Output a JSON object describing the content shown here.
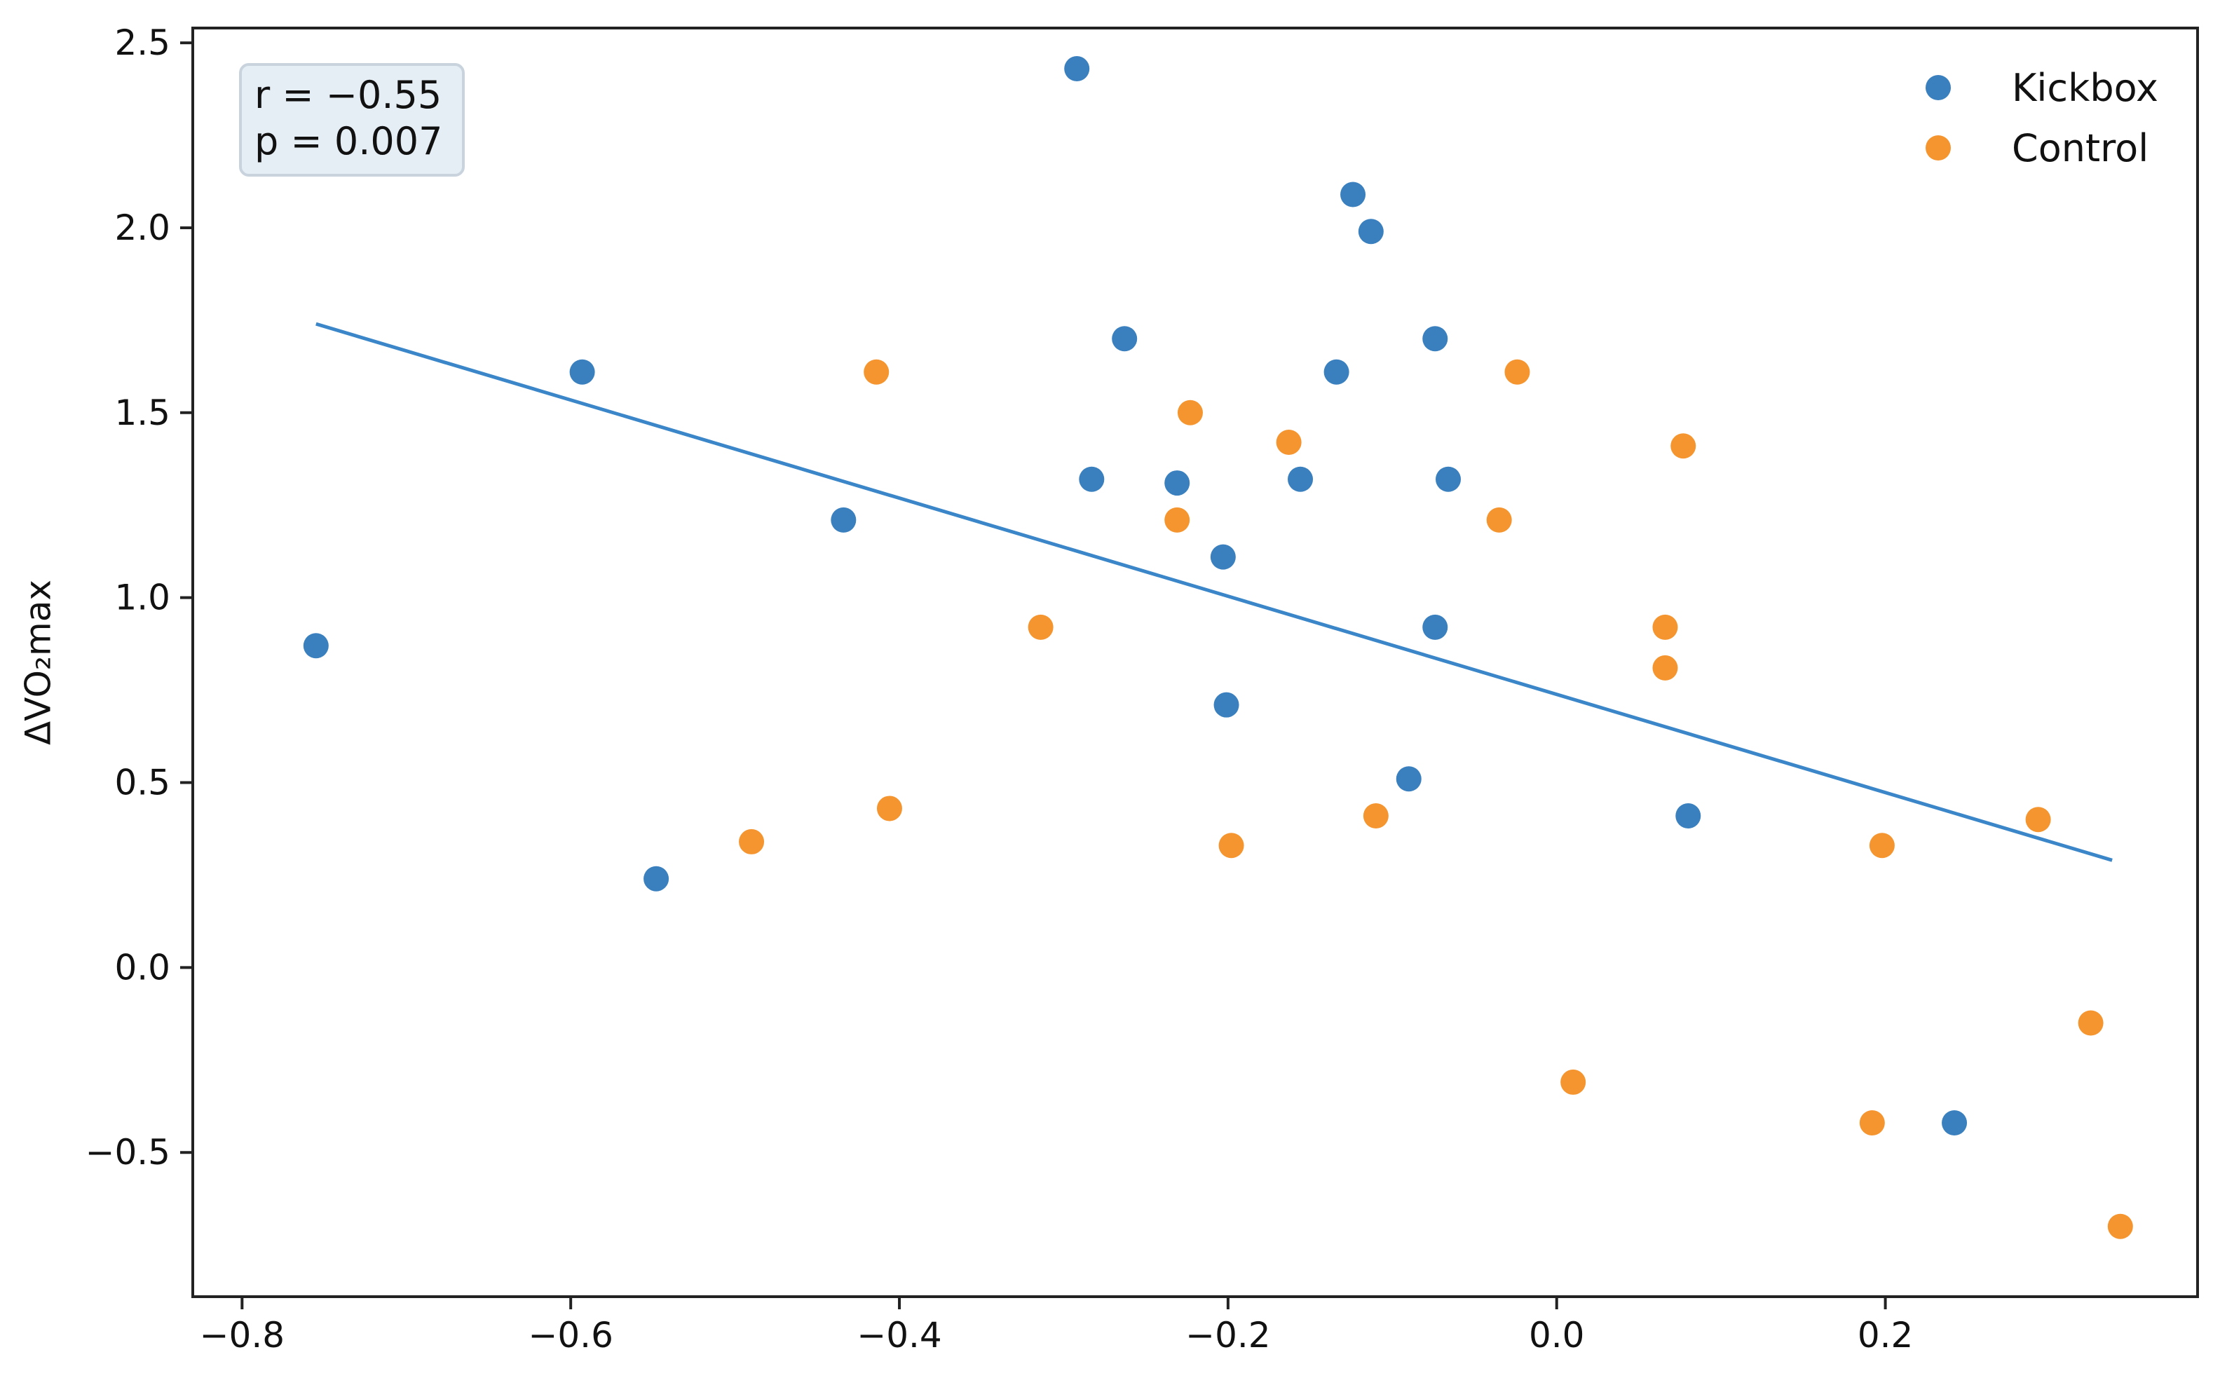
{
  "chart_data": {
    "type": "scatter",
    "title": "",
    "xlabel": "",
    "ylabel": "ΔVO₂max",
    "xlim": [
      -0.83,
      0.39
    ],
    "ylim": [
      -0.89,
      2.54
    ],
    "xticks": [
      -0.8,
      -0.6,
      -0.4,
      -0.2,
      0.0,
      0.2
    ],
    "xtick_labels": [
      "−0.8",
      "−0.6",
      "−0.4",
      "−0.2",
      "0.0",
      "0.2"
    ],
    "yticks": [
      -0.5,
      0.0,
      0.5,
      1.0,
      1.5,
      2.0,
      2.5
    ],
    "ytick_labels": [
      "−0.5",
      "0.0",
      "0.5",
      "1.0",
      "1.5",
      "2.0",
      "2.5"
    ],
    "grid": false,
    "legend_position": "top-right",
    "annotation": {
      "lines": [
        "r = −0.55",
        "p = 0.007"
      ],
      "position": "top-left"
    },
    "regression_line": {
      "color": "#3a86c8",
      "x": [
        -0.755,
        0.338
      ],
      "y": [
        1.74,
        0.29
      ]
    },
    "series": [
      {
        "name": "Kickbox",
        "color": "#3a80bf",
        "points": [
          {
            "x": -0.755,
            "y": 0.87
          },
          {
            "x": -0.593,
            "y": 1.61
          },
          {
            "x": -0.548,
            "y": 0.24
          },
          {
            "x": -0.434,
            "y": 1.21
          },
          {
            "x": -0.292,
            "y": 2.43
          },
          {
            "x": -0.283,
            "y": 1.32
          },
          {
            "x": -0.263,
            "y": 1.7
          },
          {
            "x": -0.231,
            "y": 1.31
          },
          {
            "x": -0.203,
            "y": 1.11
          },
          {
            "x": -0.201,
            "y": 0.71
          },
          {
            "x": -0.156,
            "y": 1.32
          },
          {
            "x": -0.134,
            "y": 1.61
          },
          {
            "x": -0.124,
            "y": 2.09
          },
          {
            "x": -0.113,
            "y": 1.99
          },
          {
            "x": -0.09,
            "y": 0.51
          },
          {
            "x": -0.074,
            "y": 1.7
          },
          {
            "x": -0.074,
            "y": 0.92
          },
          {
            "x": -0.066,
            "y": 1.32
          },
          {
            "x": 0.08,
            "y": 0.41
          },
          {
            "x": 0.242,
            "y": -0.42
          }
        ]
      },
      {
        "name": "Control",
        "color": "#f5952f",
        "points": [
          {
            "x": -0.49,
            "y": 0.34
          },
          {
            "x": -0.414,
            "y": 1.61
          },
          {
            "x": -0.406,
            "y": 0.43
          },
          {
            "x": -0.314,
            "y": 0.92
          },
          {
            "x": -0.231,
            "y": 1.21
          },
          {
            "x": -0.223,
            "y": 1.5
          },
          {
            "x": -0.198,
            "y": 0.33
          },
          {
            "x": -0.163,
            "y": 1.42
          },
          {
            "x": -0.11,
            "y": 0.41
          },
          {
            "x": -0.035,
            "y": 1.21
          },
          {
            "x": -0.024,
            "y": 1.61
          },
          {
            "x": 0.01,
            "y": -0.31
          },
          {
            "x": 0.066,
            "y": 0.92
          },
          {
            "x": 0.066,
            "y": 0.81
          },
          {
            "x": 0.077,
            "y": 1.41
          },
          {
            "x": 0.192,
            "y": -0.42
          },
          {
            "x": 0.198,
            "y": 0.33
          },
          {
            "x": 0.293,
            "y": 0.4
          },
          {
            "x": 0.325,
            "y": -0.15
          },
          {
            "x": 0.343,
            "y": -0.7
          }
        ]
      }
    ]
  }
}
